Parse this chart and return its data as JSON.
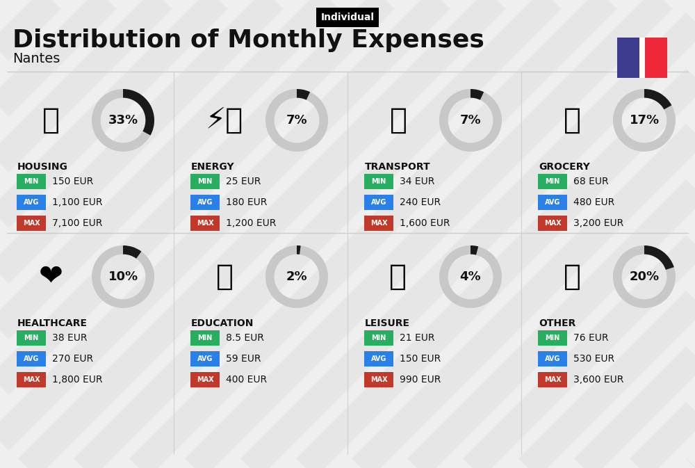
{
  "title": "Distribution of Monthly Expenses",
  "subtitle": "Nantes",
  "label_individual": "Individual",
  "bg_color": "#efefef",
  "categories": [
    {
      "name": "HOUSING",
      "pct": 33,
      "min_val": "150 EUR",
      "avg_val": "1,100 EUR",
      "max_val": "7,100 EUR",
      "row": 0,
      "col": 0
    },
    {
      "name": "ENERGY",
      "pct": 7,
      "min_val": "25 EUR",
      "avg_val": "180 EUR",
      "max_val": "1,200 EUR",
      "row": 0,
      "col": 1
    },
    {
      "name": "TRANSPORT",
      "pct": 7,
      "min_val": "34 EUR",
      "avg_val": "240 EUR",
      "max_val": "1,600 EUR",
      "row": 0,
      "col": 2
    },
    {
      "name": "GROCERY",
      "pct": 17,
      "min_val": "68 EUR",
      "avg_val": "480 EUR",
      "max_val": "3,200 EUR",
      "row": 0,
      "col": 3
    },
    {
      "name": "HEALTHCARE",
      "pct": 10,
      "min_val": "38 EUR",
      "avg_val": "270 EUR",
      "max_val": "1,800 EUR",
      "row": 1,
      "col": 0
    },
    {
      "name": "EDUCATION",
      "pct": 2,
      "min_val": "8.5 EUR",
      "avg_val": "59 EUR",
      "max_val": "400 EUR",
      "row": 1,
      "col": 1
    },
    {
      "name": "LEISURE",
      "pct": 4,
      "min_val": "21 EUR",
      "avg_val": "150 EUR",
      "max_val": "990 EUR",
      "row": 1,
      "col": 2
    },
    {
      "name": "OTHER",
      "pct": 20,
      "min_val": "76 EUR",
      "avg_val": "530 EUR",
      "max_val": "3,600 EUR",
      "row": 1,
      "col": 3
    }
  ],
  "min_color": "#27ae60",
  "avg_color": "#2980e8",
  "max_color": "#c0392b",
  "text_color": "#111111",
  "circle_gray": "#c8c8c8",
  "circle_dark": "#1a1a1a",
  "france_blue": "#3c3b8e",
  "france_white": "#ffffff",
  "france_red": "#ed2939",
  "shadow_color": "#d8d8d8",
  "header_line_color": "#cccccc",
  "col_divider_color": "#d0d0d0"
}
